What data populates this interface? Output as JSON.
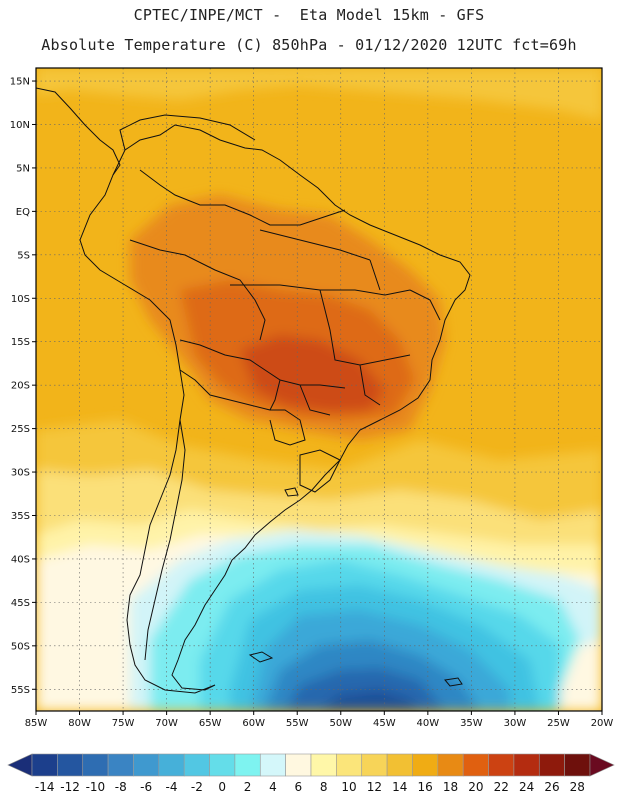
{
  "title_line1": "CPTEC/INPE/MCT -  Eta Model 15km - GFS",
  "title_line2": "Absolute Temperature (C) 850hPa - 01/12/2020 12UTC fct=69h",
  "lat_ticks": [
    "15N",
    "10N",
    "5N",
    "EQ",
    "5S",
    "10S",
    "15S",
    "20S",
    "25S",
    "30S",
    "35S",
    "40S",
    "45S",
    "50S",
    "55S"
  ],
  "lat_values": [
    15,
    10,
    5,
    0,
    -5,
    -10,
    -15,
    -20,
    -25,
    -30,
    -35,
    -40,
    -45,
    -50,
    -55
  ],
  "lon_ticks": [
    "85W",
    "80W",
    "75W",
    "70W",
    "65W",
    "60W",
    "55W",
    "50W",
    "45W",
    "40W",
    "35W",
    "30W",
    "25W",
    "20W"
  ],
  "lon_values": [
    -85,
    -80,
    -75,
    -70,
    -65,
    -60,
    -55,
    -50,
    -45,
    -40,
    -35,
    -30,
    -25,
    -20
  ],
  "map_extent": {
    "lon_min": -85,
    "lon_max": -20,
    "lat_min": -57.5,
    "lat_max": 16.5
  },
  "colorbar": {
    "labels": [
      "-14",
      "-12",
      "-10",
      "-8",
      "-6",
      "-4",
      "-2",
      "0",
      "2",
      "4",
      "6",
      "8",
      "10",
      "12",
      "14",
      "16",
      "18",
      "20",
      "22",
      "24",
      "26",
      "28"
    ],
    "colors": [
      "#1c3f8c",
      "#2456a0",
      "#2e6db2",
      "#3a84c3",
      "#3f99cf",
      "#46b0d9",
      "#52c7e3",
      "#64dde9",
      "#7ef3f0",
      "#d4f7fa",
      "#fff8e0",
      "#fff7a8",
      "#fbe57a",
      "#f7d458",
      "#f2c033",
      "#f0ac14",
      "#e88a14",
      "#e06010",
      "#cc4212",
      "#b42c10",
      "#8e1a0c",
      "#6e100c"
    ],
    "arrow_low": "#1a2e78",
    "arrow_high": "#6a0a20"
  },
  "field_colors": {
    "t18": "#f2b41a",
    "t20": "#e88a1a",
    "t22": "#de6a16",
    "t24": "#cd4c14",
    "t16": "#f5c63a",
    "t14": "#fbe079",
    "t12": "#fff3a8",
    "t8": "#fff8e2",
    "t6": "#d2f4f8",
    "t4": "#7cecf0",
    "t2": "#56d8ea",
    "t0": "#3fc2e2",
    "tm2": "#3aa8d8",
    "tm4": "#2f87c4",
    "tm6": "#2668ae",
    "tm8": "#1f4f98"
  }
}
